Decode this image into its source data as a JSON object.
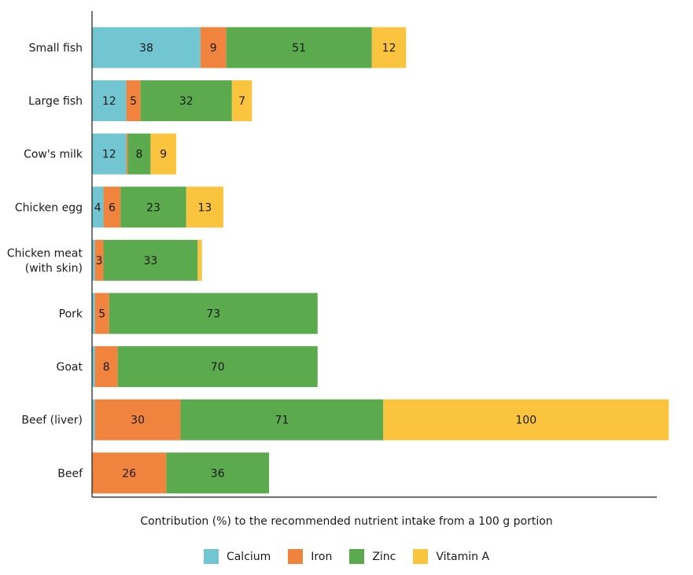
{
  "chart_data": {
    "type": "bar",
    "orientation": "horizontal",
    "stacked": true,
    "categories": [
      "Small fish",
      "Large fish",
      "Cow's milk",
      "Chicken egg",
      "Chicken meat (with skin)",
      "Pork",
      "Goat",
      "Beef (liver)",
      "Beef"
    ],
    "category_lines": [
      [
        "Small fish"
      ],
      [
        "Large fish"
      ],
      [
        "Cow's milk"
      ],
      [
        "Chicken egg"
      ],
      [
        "Chicken meat",
        "(with skin)"
      ],
      [
        "Pork"
      ],
      [
        "Goat"
      ],
      [
        "Beef (liver)"
      ],
      [
        "Beef"
      ]
    ],
    "series": [
      {
        "name": "Calcium",
        "color": "#72C6D1",
        "values": [
          38,
          12,
          12,
          4,
          1,
          1,
          1,
          1,
          0
        ],
        "labels": [
          "38",
          "12",
          "12",
          "4",
          "",
          "",
          "",
          "",
          ""
        ]
      },
      {
        "name": "Iron",
        "color": "#F0843F",
        "values": [
          9,
          5,
          0.5,
          6,
          3,
          5,
          8,
          30,
          26
        ],
        "labels": [
          "9",
          "5",
          "",
          "6",
          "3",
          "5",
          "8",
          "30",
          "26"
        ]
      },
      {
        "name": "Zinc",
        "color": "#5CAA4E",
        "values": [
          51,
          32,
          8,
          23,
          33,
          73,
          70,
          71,
          36
        ],
        "labels": [
          "51",
          "32",
          "8",
          "23",
          "33",
          "73",
          "70",
          "71",
          "36"
        ]
      },
      {
        "name": "Vitamin A",
        "color": "#FAC43E",
        "values": [
          12,
          7,
          9,
          13,
          1.5,
          0,
          0,
          100,
          0
        ],
        "labels": [
          "12",
          "7",
          "9",
          "13",
          "",
          "",
          "",
          "100",
          ""
        ]
      }
    ],
    "xlabel": "Contribution (%) to the recommended nutrient intake from a 100 g portion",
    "ylabel": "",
    "xlim": [
      0,
      200
    ],
    "grid": false,
    "legend_position": "bottom-center"
  }
}
